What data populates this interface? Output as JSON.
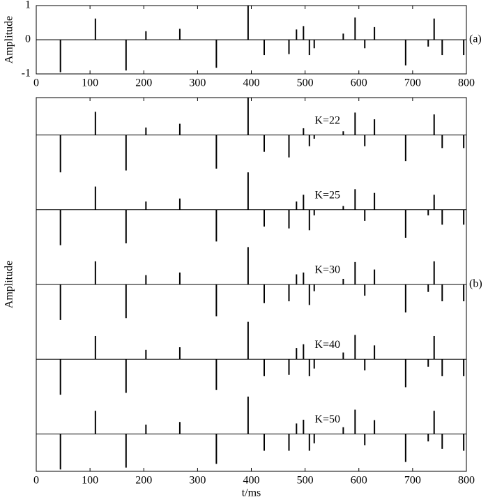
{
  "chart_data": [
    {
      "type": "stem",
      "ylabel": "Amplitude",
      "label": "(a)",
      "xlim": [
        0,
        800
      ],
      "xticks": [
        0,
        100,
        200,
        300,
        400,
        500,
        600,
        700,
        800
      ],
      "ylim": [
        -1,
        1
      ],
      "yticks": [
        -1,
        0,
        1
      ],
      "color": "#000000",
      "x": [
        45,
        110,
        167,
        204,
        267,
        335,
        394,
        424,
        470,
        484,
        497,
        508,
        517,
        571,
        593,
        611,
        629,
        687,
        729,
        740,
        755,
        795
      ],
      "values": [
        -0.95,
        0.62,
        -0.9,
        0.25,
        0.32,
        -0.82,
        1.0,
        -0.45,
        -0.42,
        0.3,
        0.4,
        -0.45,
        -0.25,
        0.18,
        0.65,
        -0.25,
        0.37,
        -0.75,
        -0.2,
        0.62,
        -0.45,
        -0.45
      ]
    },
    {
      "type": "stem",
      "ylabel": "Amplitude",
      "xlabel": "t/ms",
      "label": "(b)",
      "xlim": [
        0,
        800
      ],
      "xticks": [
        0,
        100,
        200,
        300,
        400,
        500,
        600,
        700,
        800
      ],
      "ylim": [
        -1,
        1
      ],
      "color": "#000000",
      "x": [
        45,
        110,
        167,
        204,
        267,
        335,
        394,
        424,
        470,
        484,
        497,
        508,
        517,
        571,
        593,
        611,
        629,
        687,
        729,
        740,
        755,
        795
      ],
      "series": [
        {
          "name": "K=22",
          "values": [
            -1.0,
            0.62,
            -0.95,
            0.2,
            0.3,
            -0.9,
            1.0,
            -0.45,
            -0.6,
            0.0,
            0.18,
            -0.3,
            -0.1,
            0.1,
            0.6,
            -0.3,
            0.42,
            -0.7,
            0.0,
            0.55,
            -0.35,
            -0.35
          ]
        },
        {
          "name": "K=25",
          "values": [
            -0.95,
            0.62,
            -0.9,
            0.22,
            0.3,
            -0.85,
            1.0,
            -0.45,
            -0.5,
            0.22,
            0.4,
            -0.55,
            -0.15,
            0.1,
            0.55,
            -0.3,
            0.45,
            -0.75,
            -0.15,
            0.4,
            -0.4,
            -0.4
          ]
        },
        {
          "name": "K=30",
          "values": [
            -0.95,
            0.62,
            -0.9,
            0.25,
            0.32,
            -0.85,
            1.0,
            -0.5,
            -0.45,
            0.27,
            0.32,
            -0.55,
            -0.18,
            0.15,
            0.6,
            -0.3,
            0.4,
            -0.75,
            -0.2,
            0.62,
            -0.45,
            -0.45
          ]
        },
        {
          "name": "K=40",
          "values": [
            -0.95,
            0.62,
            -0.9,
            0.25,
            0.32,
            -0.82,
            1.0,
            -0.45,
            -0.42,
            0.3,
            0.4,
            -0.45,
            -0.25,
            0.18,
            0.65,
            -0.3,
            0.37,
            -0.75,
            -0.2,
            0.62,
            -0.45,
            -0.45
          ]
        },
        {
          "name": "K=50",
          "values": [
            -0.95,
            0.62,
            -0.9,
            0.25,
            0.32,
            -0.8,
            1.0,
            -0.45,
            -0.45,
            0.28,
            0.38,
            -0.45,
            -0.25,
            0.18,
            0.65,
            -0.3,
            0.37,
            -0.75,
            -0.2,
            0.62,
            -0.4,
            -0.45
          ]
        }
      ]
    }
  ]
}
